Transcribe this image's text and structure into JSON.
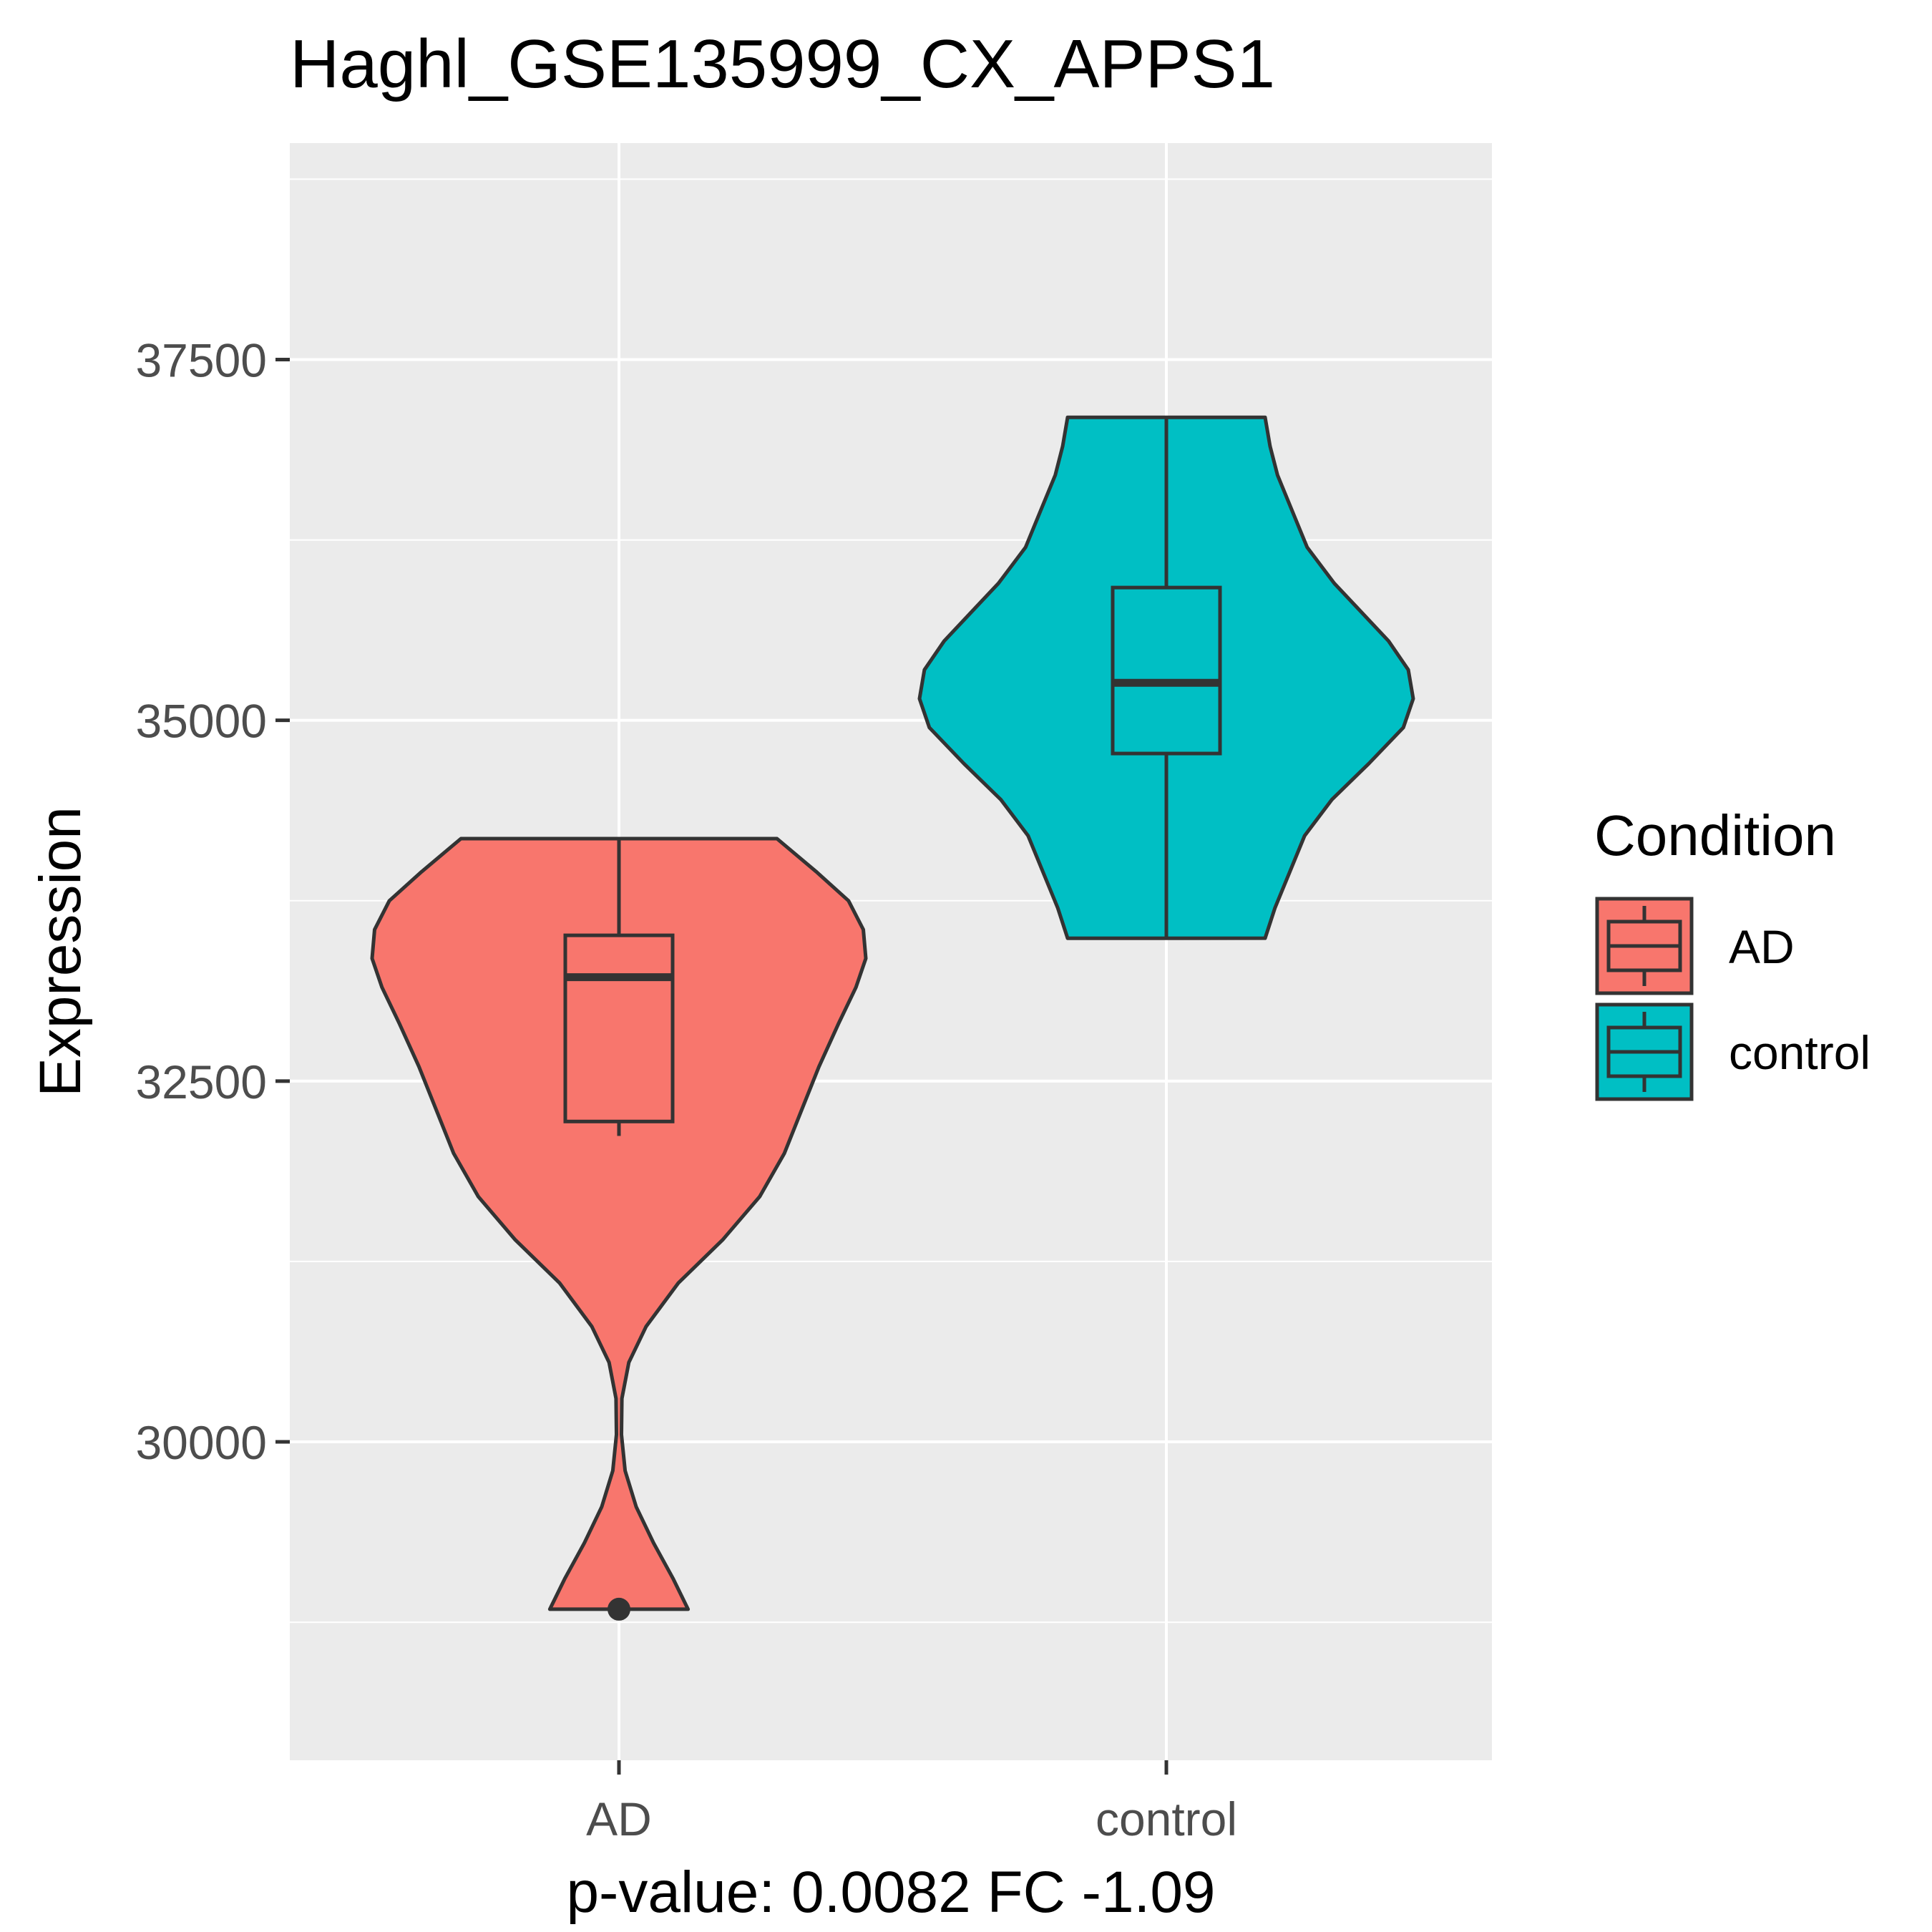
{
  "chart_data": {
    "type": "violin",
    "title": "Haghl_GSE135999_CX_APPS1",
    "xlabel": "p-value: 0.0082 FC -1.09",
    "ylabel": "Expression",
    "ylim": [
      28200,
      37500
    ],
    "yticks": [
      30000,
      32500,
      35000,
      37500
    ],
    "ytick_labels": [
      "30000",
      "32500",
      "35000",
      "37500"
    ],
    "categories": [
      "AD",
      "control"
    ],
    "legend": {
      "title": "Condition",
      "position": "right",
      "entries": [
        "AD",
        "control"
      ]
    },
    "grid": true,
    "series": [
      {
        "category": "AD",
        "color": "#F8766D",
        "min": 28840,
        "max": 34180,
        "box": {
          "q1": 32220,
          "median": 33220,
          "q3": 33510,
          "whisker_low": 32120,
          "whisker_high": 34180
        },
        "outliers": [
          28840
        ],
        "density_profile": [
          [
            28840,
            0.28
          ],
          [
            29050,
            0.22
          ],
          [
            29300,
            0.14
          ],
          [
            29550,
            0.07
          ],
          [
            29800,
            0.025
          ],
          [
            30050,
            0.01
          ],
          [
            30300,
            0.012
          ],
          [
            30550,
            0.04
          ],
          [
            30800,
            0.11
          ],
          [
            31100,
            0.24
          ],
          [
            31400,
            0.42
          ],
          [
            31700,
            0.57
          ],
          [
            32000,
            0.67
          ],
          [
            32300,
            0.74
          ],
          [
            32600,
            0.81
          ],
          [
            32900,
            0.89
          ],
          [
            33150,
            0.96
          ],
          [
            33350,
            1.0
          ],
          [
            33550,
            0.99
          ],
          [
            33750,
            0.93
          ],
          [
            33950,
            0.8
          ],
          [
            34180,
            0.64
          ]
        ]
      },
      {
        "category": "control",
        "color": "#00BFC4",
        "min": 33490,
        "max": 37100,
        "box": {
          "q1": 34770,
          "median": 35260,
          "q3": 35920,
          "whisker_low": 33490,
          "whisker_high": 37100
        },
        "outliers": [],
        "density_profile": [
          [
            33490,
            0.4
          ],
          [
            33700,
            0.44
          ],
          [
            33950,
            0.5
          ],
          [
            34200,
            0.56
          ],
          [
            34450,
            0.67
          ],
          [
            34700,
            0.82
          ],
          [
            34950,
            0.96
          ],
          [
            35150,
            1.0
          ],
          [
            35350,
            0.98
          ],
          [
            35550,
            0.9
          ],
          [
            35750,
            0.79
          ],
          [
            35950,
            0.68
          ],
          [
            36200,
            0.57
          ],
          [
            36450,
            0.51
          ],
          [
            36700,
            0.45
          ],
          [
            36900,
            0.42
          ],
          [
            37100,
            0.4
          ]
        ]
      }
    ]
  }
}
